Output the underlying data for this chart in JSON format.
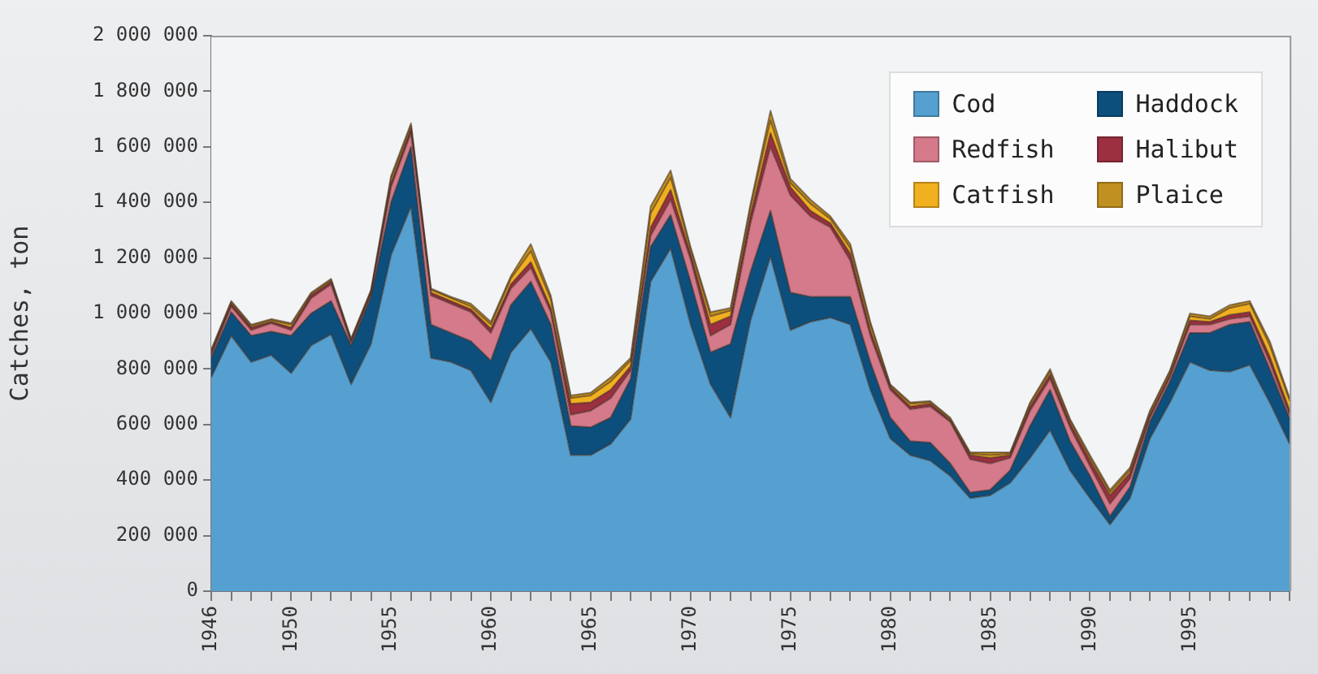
{
  "chart_data": {
    "type": "area",
    "stacked": true,
    "ylabel": "Catches, ton",
    "legend": "top right",
    "grid": false,
    "x": [
      1946,
      1947,
      1948,
      1949,
      1950,
      1951,
      1952,
      1953,
      1954,
      1955,
      1956,
      1957,
      1958,
      1959,
      1960,
      1961,
      1962,
      1963,
      1964,
      1965,
      1966,
      1967,
      1968,
      1969,
      1970,
      1971,
      1972,
      1973,
      1974,
      1975,
      1976,
      1977,
      1978,
      1979,
      1980,
      1981,
      1982,
      1983,
      1984,
      1985,
      1986,
      1987,
      1988,
      1989,
      1990,
      1991,
      1992,
      1993,
      1994,
      1995,
      1996,
      1997,
      1998,
      1999,
      2000
    ],
    "xlim": [
      1946,
      2000
    ],
    "xticks": [
      1946,
      {
        "value": 1947,
        "label": null
      },
      {
        "value": 1948,
        "label": null
      },
      {
        "value": 1949,
        "label": null
      },
      1950,
      {
        "value": 1951,
        "label": null
      },
      {
        "value": 1952,
        "label": null
      },
      {
        "value": 1953,
        "label": null
      },
      {
        "value": 1954,
        "label": null
      },
      1955,
      {
        "value": 1956,
        "label": null
      },
      {
        "value": 1957,
        "label": null
      },
      {
        "value": 1958,
        "label": null
      },
      {
        "value": 1959,
        "label": null
      },
      1960,
      {
        "value": 1961,
        "label": null
      },
      {
        "value": 1962,
        "label": null
      },
      {
        "value": 1963,
        "label": null
      },
      {
        "value": 1964,
        "label": null
      },
      1965,
      {
        "value": 1966,
        "label": null
      },
      {
        "value": 1967,
        "label": null
      },
      {
        "value": 1968,
        "label": null
      },
      {
        "value": 1969,
        "label": null
      },
      1970,
      {
        "value": 1971,
        "label": null
      },
      {
        "value": 1972,
        "label": null
      },
      {
        "value": 1973,
        "label": null
      },
      {
        "value": 1974,
        "label": null
      },
      1975,
      {
        "value": 1976,
        "label": null
      },
      {
        "value": 1977,
        "label": null
      },
      {
        "value": 1978,
        "label": null
      },
      {
        "value": 1979,
        "label": null
      },
      1980,
      {
        "value": 1981,
        "label": null
      },
      {
        "value": 1982,
        "label": null
      },
      {
        "value": 1983,
        "label": null
      },
      {
        "value": 1984,
        "label": null
      },
      1985,
      {
        "value": 1986,
        "label": null
      },
      {
        "value": 1987,
        "label": null
      },
      {
        "value": 1988,
        "label": null
      },
      {
        "value": 1989,
        "label": null
      },
      1990,
      {
        "value": 1991,
        "label": null
      },
      {
        "value": 1992,
        "label": null
      },
      {
        "value": 1993,
        "label": null
      },
      {
        "value": 1994,
        "label": null
      },
      1995,
      {
        "value": 1996,
        "label": null
      },
      {
        "value": 1997,
        "label": null
      },
      {
        "value": 1998,
        "label": null
      },
      {
        "value": 1999,
        "label": null
      },
      {
        "value": 2000,
        "label": null
      }
    ],
    "ylim": [
      0,
      2000000
    ],
    "yticks": [
      0,
      {
        "value": 200000,
        "label": "200 000"
      },
      {
        "value": 400000,
        "label": "400 000"
      },
      {
        "value": 600000,
        "label": "600 000"
      },
      {
        "value": 800000,
        "label": "800 000"
      },
      {
        "value": 1000000,
        "label": "1 000 000"
      },
      {
        "value": 1200000,
        "label": "1 200 000"
      },
      {
        "value": 1400000,
        "label": "1 400 000"
      },
      {
        "value": 1600000,
        "label": "1 600 000"
      },
      {
        "value": 1800000,
        "label": "1 800 000"
      },
      {
        "value": 2000000,
        "label": "2 000 000"
      }
    ],
    "series": [
      {
        "name": "Cod",
        "color": "#55a0d0",
        "values": [
          770000,
          920000,
          825000,
          850000,
          785000,
          885000,
          925000,
          745000,
          890000,
          1210000,
          1385000,
          840000,
          825000,
          795000,
          680000,
          860000,
          945000,
          825000,
          490000,
          490000,
          530000,
          620000,
          1115000,
          1235000,
          960000,
          745000,
          625000,
          975000,
          1205000,
          940000,
          970000,
          985000,
          960000,
          725000,
          550000,
          490000,
          470000,
          415000,
          335000,
          345000,
          390000,
          480000,
          580000,
          435000,
          335000,
          240000,
          335000,
          550000,
          680000,
          825000,
          795000,
          790000,
          815000,
          680000,
          530000
        ]
      },
      {
        "name": "Haddock",
        "color": "#0d4f7c",
        "values": [
          70000,
          85000,
          95000,
          85000,
          135000,
          115000,
          120000,
          140000,
          170000,
          190000,
          215000,
          120000,
          105000,
          105000,
          150000,
          170000,
          170000,
          135000,
          105000,
          100000,
          95000,
          145000,
          125000,
          120000,
          155000,
          115000,
          265000,
          175000,
          165000,
          135000,
          90000,
          75000,
          100000,
          100000,
          75000,
          50000,
          65000,
          45000,
          20000,
          20000,
          45000,
          115000,
          145000,
          105000,
          80000,
          30000,
          40000,
          60000,
          75000,
          105000,
          135000,
          170000,
          155000,
          120000,
          90000
        ]
      },
      {
        "name": "Redfish",
        "color": "#d47a8a",
        "values": [
          10000,
          20000,
          20000,
          30000,
          20000,
          55000,
          60000,
          10000,
          10000,
          55000,
          50000,
          105000,
          105000,
          105000,
          100000,
          60000,
          50000,
          45000,
          40000,
          60000,
          70000,
          30000,
          40000,
          55000,
          80000,
          60000,
          70000,
          175000,
          230000,
          350000,
          290000,
          250000,
          130000,
          95000,
          100000,
          115000,
          130000,
          150000,
          120000,
          95000,
          45000,
          55000,
          40000,
          50000,
          35000,
          45000,
          30000,
          15000,
          15000,
          30000,
          30000,
          20000,
          20000,
          25000,
          15000
        ]
      },
      {
        "name": "Halibut",
        "color": "#9c3040",
        "values": [
          10000,
          10000,
          10000,
          5000,
          10000,
          10000,
          10000,
          5000,
          5000,
          15000,
          15000,
          10000,
          10000,
          10000,
          15000,
          15000,
          20000,
          15000,
          40000,
          30000,
          30000,
          15000,
          30000,
          35000,
          20000,
          40000,
          30000,
          30000,
          50000,
          30000,
          20000,
          15000,
          25000,
          20000,
          10000,
          10000,
          10000,
          5000,
          15000,
          20000,
          10000,
          15000,
          15000,
          15000,
          20000,
          30000,
          20000,
          10000,
          10000,
          15000,
          10000,
          15000,
          15000,
          20000,
          15000
        ]
      },
      {
        "name": "Catfish",
        "color": "#f0b020",
        "values": [
          5000,
          5000,
          5000,
          5000,
          10000,
          5000,
          5000,
          5000,
          5000,
          15000,
          10000,
          10000,
          10000,
          10000,
          15000,
          20000,
          40000,
          30000,
          20000,
          25000,
          30000,
          20000,
          50000,
          45000,
          15000,
          30000,
          20000,
          25000,
          45000,
          15000,
          25000,
          15000,
          20000,
          20000,
          5000,
          10000,
          5000,
          5000,
          5000,
          10000,
          5000,
          10000,
          10000,
          10000,
          10000,
          10000,
          10000,
          10000,
          10000,
          15000,
          10000,
          25000,
          30000,
          40000,
          35000
        ]
      },
      {
        "name": "Plaice",
        "color": "#c09020",
        "values": [
          5000,
          5000,
          5000,
          5000,
          5000,
          5000,
          5000,
          5000,
          5000,
          10000,
          10000,
          5000,
          5000,
          10000,
          10000,
          10000,
          25000,
          15000,
          10000,
          10000,
          15000,
          10000,
          25000,
          25000,
          10000,
          15000,
          10000,
          15000,
          35000,
          15000,
          15000,
          10000,
          15000,
          10000,
          5000,
          5000,
          5000,
          5000,
          5000,
          10000,
          5000,
          5000,
          10000,
          5000,
          10000,
          10000,
          10000,
          5000,
          5000,
          10000,
          10000,
          10000,
          10000,
          15000,
          10000
        ]
      }
    ]
  }
}
